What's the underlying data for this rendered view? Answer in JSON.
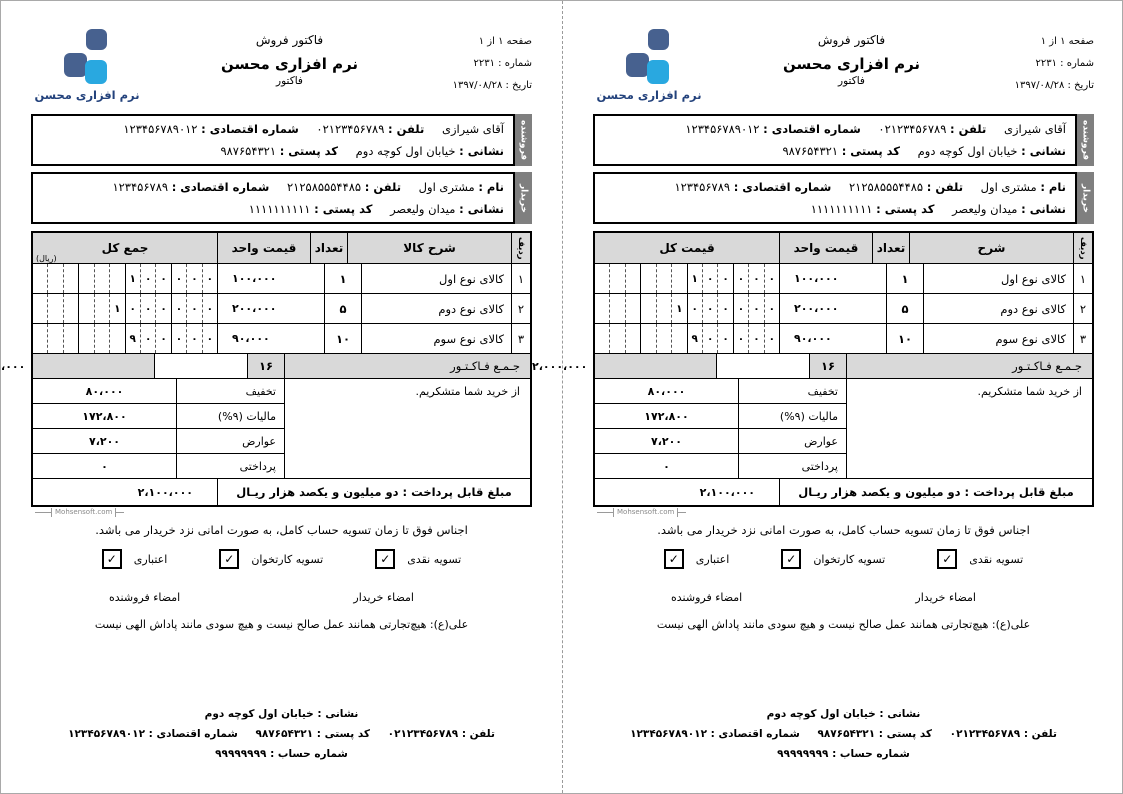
{
  "brand": {
    "logo_text": "نرم افزاری محسن",
    "dark_blue": "#47618f",
    "light_blue": "#29a8e0"
  },
  "meta": {
    "page": "صفحه ۱ از ۱",
    "number": "شماره : ۲۲۳۱",
    "date": "تاریخ : ۱۳۹۷/۰۸/۲۸"
  },
  "titles": {
    "top": "فاکتور فروش",
    "main": "نرم افزاری محسن",
    "sub": "فاکتور"
  },
  "seller": {
    "tab": "فروشنده",
    "name": "آقای شیرازی",
    "phone_label": "تلفن :",
    "phone": "۰۲۱۲۳۴۵۶۷۸۹",
    "eco_label": "شماره اقتصادی :",
    "eco": "۱۲۳۴۵۶۷۸۹۰۱۲",
    "addr_label": "نشانی :",
    "addr": "خیابان اول کوچه دوم",
    "postal_label": "کد پستی :",
    "postal": "۹۸۷۶۵۴۳۲۱"
  },
  "buyer": {
    "tab": "خریدار",
    "name_label": "نام :",
    "name": "مشتری اول",
    "phone_label": "تلفن :",
    "phone": "۲۱۲۵۸۵۵۵۴۴۸۵",
    "eco_label": "شماره اقتصادی :",
    "eco": "۱۲۳۴۵۶۷۸۹",
    "addr_label": "نشانی :",
    "addr": "میدان ولیعصر",
    "postal_label": "کد پستی :",
    "postal": "۱۱۱۱۱۱۱۱۱۱"
  },
  "copies": [
    {
      "h_desc": "شرح",
      "h_total": "قیمت کل",
      "unit_note": ""
    },
    {
      "h_desc": "شرح کالا",
      "h_total": "جمع کل",
      "unit_note": "(ریال)"
    }
  ],
  "table": {
    "h_row": "ردیف",
    "h_qty": "تعداد",
    "h_unit": "قیمت واحد",
    "items": [
      {
        "row": "۱",
        "desc": "کالای نوع اول",
        "qty": "۱",
        "unit": "۱۰۰،۰۰۰",
        "digits": [
          "",
          "",
          "",
          "",
          "",
          "",
          "۱",
          "۰",
          "۰",
          "۰",
          "۰",
          "۰"
        ]
      },
      {
        "row": "۲",
        "desc": "کالای نوع دوم",
        "qty": "۵",
        "unit": "۲۰۰،۰۰۰",
        "digits": [
          "",
          "",
          "",
          "",
          "",
          "۱",
          "۰",
          "۰",
          "۰",
          "۰",
          "۰",
          "۰"
        ]
      },
      {
        "row": "۳",
        "desc": "کالای نوع سوم",
        "qty": "۱۰",
        "unit": "۹۰،۰۰۰",
        "digits": [
          "",
          "",
          "",
          "",
          "",
          "",
          "۹",
          "۰",
          "۰",
          "۰",
          "۰",
          "۰"
        ]
      }
    ],
    "total_label": "جـمـع فـاکـتـور",
    "total_qty": "۱۶",
    "total_value": "۲،۰۰۰،۰۰۰"
  },
  "summary": {
    "thanks": "از خرید شما متشکریم.",
    "rows": [
      {
        "label": "تخفیف",
        "value": "۸۰،۰۰۰"
      },
      {
        "label": "مالیات (۹%)",
        "value": "۱۷۲،۸۰۰"
      },
      {
        "label": "عوارض",
        "value": "۷،۲۰۰"
      },
      {
        "label": "پرداختی",
        "value": "۰"
      }
    ],
    "payable_label": "مبلغ قابل پرداخت : دو میلیون و یکصد هزار  ریـال",
    "payable_value": "۲،۱۰۰،۰۰۰"
  },
  "watermark": "Mohsensoft.com",
  "conditions": "اجناس فوق تا زمان تسویه حساب کامل، به صورت امانی نزد خریدار می باشد.",
  "payment_options": [
    {
      "label": "تسویه نقدی",
      "checked": "✓"
    },
    {
      "label": "تسویه کارتخوان",
      "checked": "✓"
    },
    {
      "label": "اعتباری",
      "checked": "✓"
    }
  ],
  "signatures": {
    "buyer": "امضاء خریدار",
    "seller": "امضاء فروشنده"
  },
  "quote": "علی(ع): هیچ‌تجارتی همانند عمل صالح نیست و هیچ سودی مانند پاداش الهی نیست",
  "footer": {
    "addr_label": "نشانی :",
    "addr": "خیابان اول کوچه دوم",
    "phone_label": "تلفن :",
    "phone": "۰۲۱۲۳۴۵۶۷۸۹",
    "postal_label": "کد پستی :",
    "postal": "۹۸۷۶۵۴۳۲۱",
    "eco_label": "شماره اقتصادی :",
    "eco": "۱۲۳۴۵۶۷۸۹۰۱۲",
    "account_label": "شماره حساب :",
    "account": "۹۹۹۹۹۹۹۹"
  }
}
